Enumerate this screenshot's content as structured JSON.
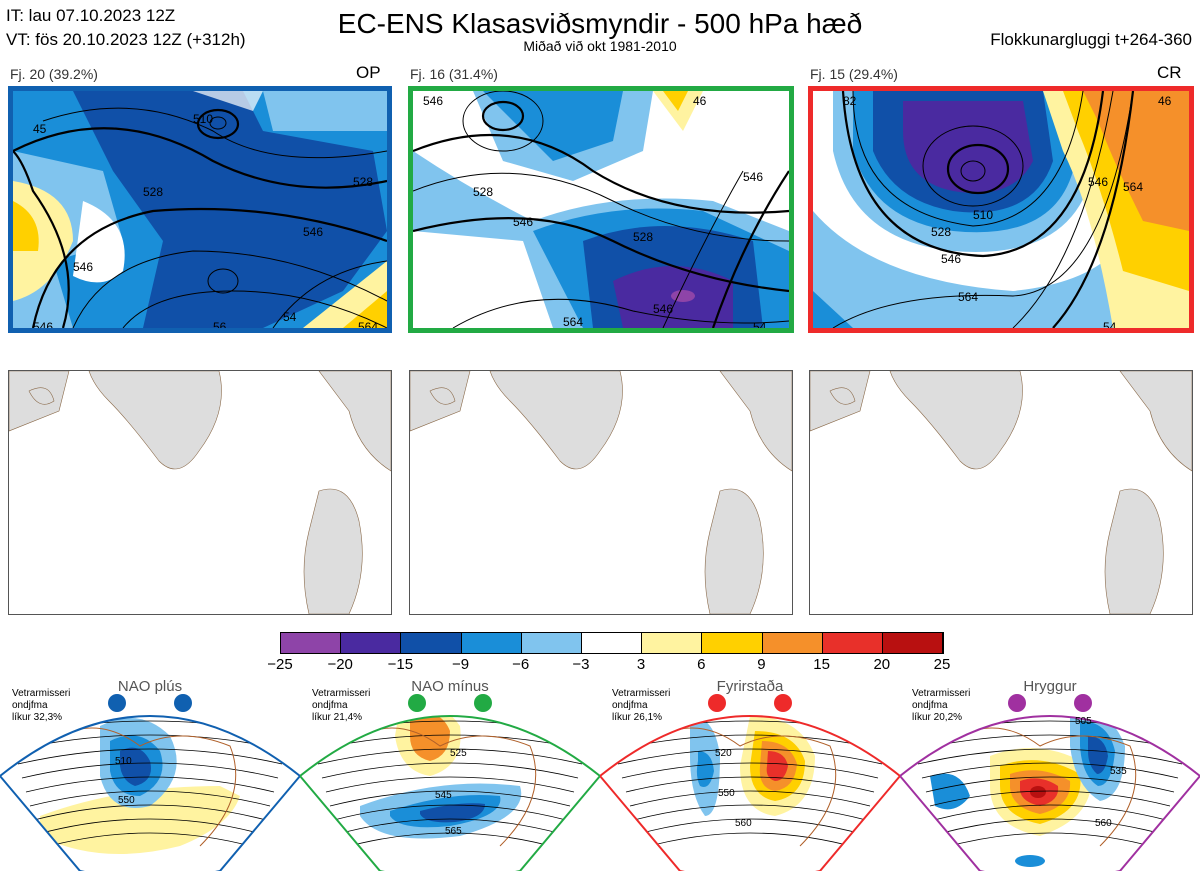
{
  "header": {
    "it_line": "IT: lau 07.10.2023 12Z",
    "vt_line": "VT: fös 20.10.2023 12Z  (+312h)",
    "title": "EC-ENS Klasasviðsmyndir - 500 hPa hæð",
    "subtitle": "Miðað við okt 1981-2010",
    "window": "Flokkunargluggi t+264-360"
  },
  "clusters": [
    {
      "count_label": "Fj. 20 (39.2%)",
      "tag": "OP",
      "border_color": "#1060b0",
      "contour_labels": [
        "510",
        "528",
        "546",
        "528",
        "546",
        "564",
        "45",
        "546",
        "54",
        "56"
      ]
    },
    {
      "count_label": "Fj. 16 (31.4%)",
      "tag": "",
      "border_color": "#22aa44",
      "contour_labels": [
        "528",
        "546",
        "528",
        "546",
        "564",
        "546",
        "546",
        "54",
        "46"
      ]
    },
    {
      "count_label": "Fj. 15 (29.4%)",
      "tag": "CR",
      "border_color": "#ee2a2a",
      "contour_labels": [
        "510",
        "528",
        "546",
        "564",
        "546",
        "564",
        "54",
        "46",
        "82"
      ]
    }
  ],
  "colorbar": {
    "ticks": [
      "−25",
      "−20",
      "−15",
      "−9",
      "−6",
      "−3",
      "3",
      "6",
      "9",
      "15",
      "20",
      "25"
    ],
    "colors": [
      "#8e44a8",
      "#4a2aa0",
      "#1050a8",
      "#1a8ed8",
      "#80c4ee",
      "#ffffff",
      "#fff3a0",
      "#ffd000",
      "#f5902a",
      "#e8302a",
      "#b81010"
    ]
  },
  "regimes": [
    {
      "name": "NAO plús",
      "info_1": "Vetrarmisseri",
      "info_2": "ondjfma",
      "info_3": "líkur 32,3%",
      "color": "#1060b0",
      "labels": [
        "510",
        "550"
      ]
    },
    {
      "name": "NAO mínus",
      "info_1": "Vetrarmisseri",
      "info_2": "ondjfma",
      "info_3": "líkur 21,4%",
      "color": "#22aa44",
      "labels": [
        "525",
        "545",
        "565"
      ]
    },
    {
      "name": "Fyrirstaða",
      "info_1": "Vetrarmisseri",
      "info_2": "ondjfma",
      "info_3": "líkur 26,1%",
      "color": "#ee2a2a",
      "labels": [
        "520",
        "550",
        "560"
      ]
    },
    {
      "name": "Hryggur",
      "info_1": "Vetrarmisseri",
      "info_2": "ondjfma",
      "info_3": "líkur 20,2%",
      "color": "#a030a0",
      "labels": [
        "505",
        "535",
        "560"
      ]
    }
  ]
}
